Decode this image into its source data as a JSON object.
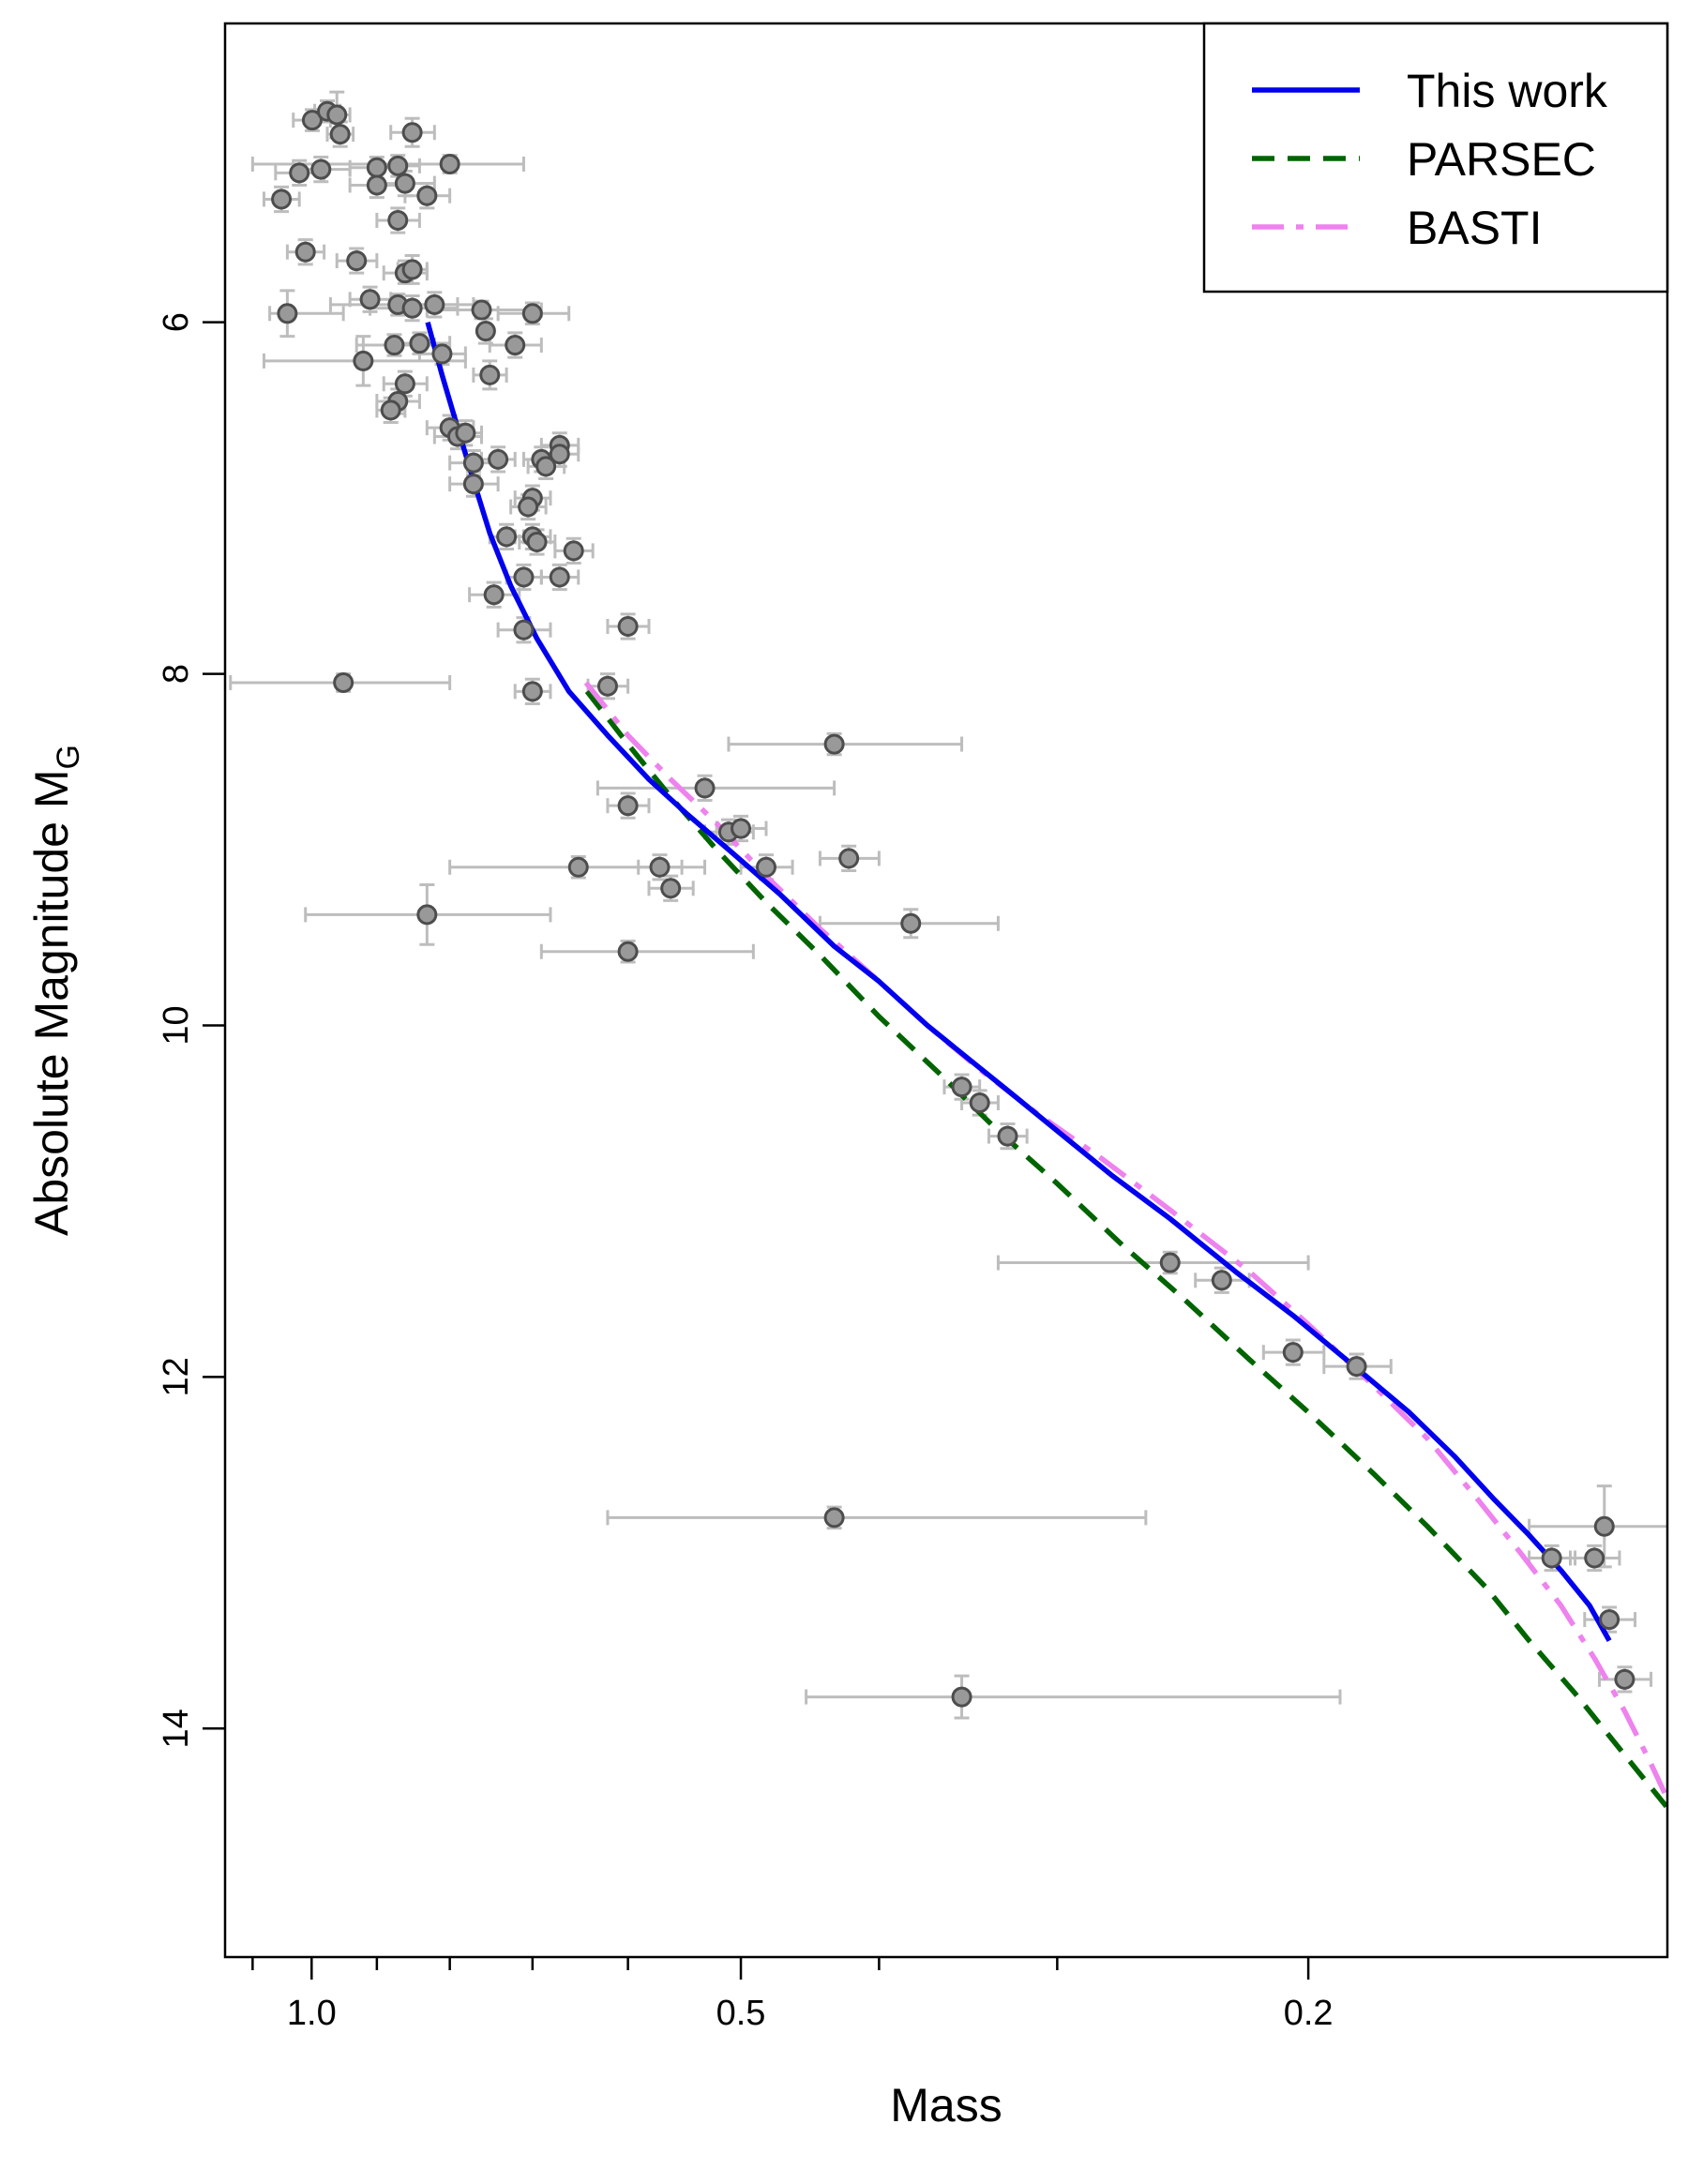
{
  "chart_data": {
    "type": "scatter",
    "title": "",
    "xlabel": "Mass",
    "ylabel_main": "Absolute Magnitude M",
    "ylabel_sub": "G",
    "x_scale": "log",
    "x_reversed": true,
    "xlim": [
      1.15,
      0.112
    ],
    "y_reversed": true,
    "ylim": [
      4.3,
      15.3
    ],
    "x_major_ticks": [
      1.0,
      0.5,
      0.2
    ],
    "x_major_tick_labels": [
      "1.0",
      "0.5",
      "0.2"
    ],
    "x_minor_ticks": [
      1.1,
      0.9,
      0.8,
      0.7,
      0.6,
      0.4,
      0.3,
      0.1
    ],
    "y_ticks": [
      6,
      8,
      10,
      12,
      14
    ],
    "y_tick_labels": [
      "6",
      "8",
      "10",
      "12",
      "14"
    ],
    "legend": {
      "position": "top-right",
      "entries": [
        {
          "label": "This work",
          "color": "#0000ee",
          "style": "solid"
        },
        {
          "label": "PARSEC",
          "color": "#006400",
          "style": "dashed"
        },
        {
          "label": "BASTI",
          "color": "#ee82ee",
          "style": "dashdot"
        }
      ]
    },
    "series": [
      {
        "name": "This work",
        "color": "#0000ee",
        "style": "solid",
        "points": [
          [
            0.829,
            6.0
          ],
          [
            0.81,
            6.3
          ],
          [
            0.79,
            6.6
          ],
          [
            0.77,
            6.9
          ],
          [
            0.75,
            7.2
          ],
          [
            0.725,
            7.5
          ],
          [
            0.695,
            7.8
          ],
          [
            0.66,
            8.1
          ],
          [
            0.62,
            8.35
          ],
          [
            0.58,
            8.6
          ],
          [
            0.545,
            8.8
          ],
          [
            0.51,
            9.0
          ],
          [
            0.47,
            9.25
          ],
          [
            0.43,
            9.55
          ],
          [
            0.4,
            9.75
          ],
          [
            0.37,
            10.0
          ],
          [
            0.345,
            10.2
          ],
          [
            0.325,
            10.37
          ],
          [
            0.3,
            10.6
          ],
          [
            0.275,
            10.85
          ],
          [
            0.25,
            11.1
          ],
          [
            0.225,
            11.4
          ],
          [
            0.205,
            11.65
          ],
          [
            0.185,
            11.95
          ],
          [
            0.17,
            12.2
          ],
          [
            0.158,
            12.45
          ],
          [
            0.148,
            12.7
          ],
          [
            0.14,
            12.9
          ],
          [
            0.133,
            13.1
          ],
          [
            0.127,
            13.3
          ],
          [
            0.123,
            13.5
          ]
        ]
      },
      {
        "name": "PARSEC",
        "color": "#006400",
        "style": "dashed",
        "points": [
          [
            0.641,
            8.1
          ],
          [
            0.6,
            8.4
          ],
          [
            0.56,
            8.7
          ],
          [
            0.52,
            9.0
          ],
          [
            0.48,
            9.3
          ],
          [
            0.44,
            9.6
          ],
          [
            0.4,
            9.95
          ],
          [
            0.36,
            10.3
          ],
          [
            0.33,
            10.6
          ],
          [
            0.3,
            10.9
          ],
          [
            0.27,
            11.25
          ],
          [
            0.245,
            11.55
          ],
          [
            0.22,
            11.9
          ],
          [
            0.2,
            12.2
          ],
          [
            0.18,
            12.55
          ],
          [
            0.165,
            12.85
          ],
          [
            0.15,
            13.2
          ],
          [
            0.14,
            13.5
          ],
          [
            0.13,
            13.8
          ],
          [
            0.12,
            14.15
          ],
          [
            0.112,
            14.45
          ]
        ]
      },
      {
        "name": "BASTI",
        "color": "#ee82ee",
        "style": "dashdot",
        "points": [
          [
            0.642,
            8.05
          ],
          [
            0.6,
            8.35
          ],
          [
            0.56,
            8.6
          ],
          [
            0.52,
            8.85
          ],
          [
            0.48,
            9.15
          ],
          [
            0.44,
            9.45
          ],
          [
            0.4,
            9.75
          ],
          [
            0.37,
            10.0
          ],
          [
            0.34,
            10.25
          ],
          [
            0.31,
            10.5
          ],
          [
            0.28,
            10.75
          ],
          [
            0.25,
            11.05
          ],
          [
            0.22,
            11.4
          ],
          [
            0.2,
            11.7
          ],
          [
            0.18,
            12.05
          ],
          [
            0.165,
            12.35
          ],
          [
            0.152,
            12.7
          ],
          [
            0.142,
            13.0
          ],
          [
            0.133,
            13.3
          ],
          [
            0.126,
            13.6
          ],
          [
            0.12,
            13.9
          ],
          [
            0.115,
            14.2
          ],
          [
            0.112,
            14.4
          ]
        ]
      }
    ],
    "points": [
      [
        0.999,
        4.85,
        0.97,
        1.03,
        4.79,
        4.91
      ],
      [
        0.975,
        4.8,
        0.955,
        0.995,
        4.74,
        4.86
      ],
      [
        0.96,
        4.82,
        0.94,
        0.98,
        4.69,
        4.95
      ],
      [
        0.955,
        4.93,
        0.935,
        0.975,
        4.86,
        5.0
      ],
      [
        0.85,
        4.92,
        0.82,
        0.88,
        4.84,
        5.0
      ],
      [
        0.8,
        5.1,
        1.1,
        0.71,
        5.05,
        5.15
      ],
      [
        0.9,
        5.12,
        0.86,
        0.94,
        5.06,
        5.18
      ],
      [
        0.87,
        5.11,
        0.84,
        0.9,
        5.05,
        5.17
      ],
      [
        0.985,
        5.13,
        0.94,
        1.03,
        5.06,
        5.2
      ],
      [
        1.02,
        5.15,
        1.06,
        0.98,
        5.08,
        5.22
      ],
      [
        1.05,
        5.3,
        1.08,
        1.02,
        5.23,
        5.37
      ],
      [
        0.9,
        5.22,
        0.86,
        0.94,
        5.15,
        5.29
      ],
      [
        0.86,
        5.21,
        0.82,
        0.9,
        5.14,
        5.28
      ],
      [
        0.83,
        5.28,
        0.8,
        0.86,
        5.21,
        5.35
      ],
      [
        0.87,
        5.42,
        0.84,
        0.9,
        5.35,
        5.49
      ],
      [
        1.01,
        5.6,
        1.04,
        0.98,
        5.53,
        5.67
      ],
      [
        0.93,
        5.65,
        0.9,
        0.96,
        5.58,
        5.72
      ],
      [
        0.86,
        5.72,
        0.83,
        0.89,
        5.65,
        5.78
      ],
      [
        0.85,
        5.7,
        0.83,
        0.87,
        5.62,
        5.78
      ],
      [
        0.91,
        5.87,
        0.88,
        0.94,
        5.8,
        5.94
      ],
      [
        0.87,
        5.9,
        0.77,
        0.97,
        5.84,
        5.96
      ],
      [
        0.85,
        5.92,
        0.79,
        0.91,
        5.85,
        5.99
      ],
      [
        0.82,
        5.9,
        0.79,
        0.85,
        5.83,
        5.97
      ],
      [
        0.76,
        5.93,
        0.69,
        0.83,
        5.88,
        5.98
      ],
      [
        0.7,
        5.95,
        0.66,
        0.74,
        5.89,
        6.01
      ],
      [
        1.04,
        5.95,
        1.07,
        0.95,
        5.82,
        6.08
      ],
      [
        0.755,
        6.05,
        0.75,
        0.76,
        5.98,
        6.12
      ],
      [
        0.84,
        6.12,
        0.8,
        0.88,
        6.06,
        6.18
      ],
      [
        0.875,
        6.13,
        0.82,
        0.93,
        6.07,
        6.19
      ],
      [
        0.81,
        6.18,
        0.78,
        0.84,
        6.12,
        6.24
      ],
      [
        0.72,
        6.13,
        0.69,
        0.75,
        6.06,
        6.2
      ],
      [
        0.92,
        6.22,
        1.08,
        0.78,
        6.08,
        6.36
      ],
      [
        0.75,
        6.3,
        0.73,
        0.77,
        6.22,
        6.38
      ],
      [
        0.86,
        6.35,
        0.83,
        0.89,
        6.28,
        6.42
      ],
      [
        0.87,
        6.45,
        0.84,
        0.9,
        6.38,
        6.52
      ],
      [
        0.88,
        6.5,
        0.86,
        0.9,
        6.43,
        6.57
      ],
      [
        0.8,
        6.6,
        0.77,
        0.83,
        6.53,
        6.67
      ],
      [
        0.79,
        6.65,
        0.76,
        0.82,
        6.58,
        6.72
      ],
      [
        0.78,
        6.63,
        0.76,
        0.8,
        6.56,
        6.7
      ],
      [
        0.67,
        6.7,
        0.65,
        0.69,
        6.63,
        6.77
      ],
      [
        0.67,
        6.75,
        0.65,
        0.69,
        6.68,
        6.82
      ],
      [
        0.69,
        6.78,
        0.67,
        0.71,
        6.71,
        6.85
      ],
      [
        0.74,
        6.78,
        0.72,
        0.76,
        6.71,
        6.85
      ],
      [
        0.685,
        6.82,
        0.665,
        0.705,
        6.75,
        6.89
      ],
      [
        0.77,
        6.8,
        0.74,
        0.8,
        6.73,
        6.87
      ],
      [
        0.77,
        6.92,
        0.74,
        0.8,
        6.85,
        6.99
      ],
      [
        0.7,
        7.0,
        0.68,
        0.72,
        6.93,
        7.07
      ],
      [
        0.705,
        7.05,
        0.685,
        0.725,
        6.98,
        7.12
      ],
      [
        0.73,
        7.22,
        0.71,
        0.75,
        7.15,
        7.29
      ],
      [
        0.7,
        7.22,
        0.68,
        0.72,
        7.15,
        7.29
      ],
      [
        0.695,
        7.25,
        0.675,
        0.715,
        7.18,
        7.32
      ],
      [
        0.655,
        7.3,
        0.635,
        0.675,
        7.23,
        7.37
      ],
      [
        0.71,
        7.45,
        0.69,
        0.73,
        7.38,
        7.52
      ],
      [
        0.67,
        7.45,
        0.65,
        0.69,
        7.38,
        7.52
      ],
      [
        0.745,
        7.55,
        0.715,
        0.775,
        7.48,
        7.62
      ],
      [
        0.71,
        7.75,
        0.68,
        0.74,
        7.68,
        7.82
      ],
      [
        0.6,
        7.73,
        0.58,
        0.62,
        7.66,
        7.8
      ],
      [
        0.95,
        8.05,
        1.14,
        0.8,
        8.0,
        8.1
      ],
      [
        0.7,
        8.1,
        0.68,
        0.72,
        8.03,
        8.17
      ],
      [
        0.62,
        8.07,
        0.6,
        0.64,
        8.0,
        8.14
      ],
      [
        0.43,
        8.4,
        0.51,
        0.35,
        8.34,
        8.46
      ],
      [
        0.53,
        8.65,
        0.63,
        0.43,
        8.58,
        8.72
      ],
      [
        0.6,
        8.75,
        0.58,
        0.62,
        8.68,
        8.82
      ],
      [
        0.51,
        8.9,
        0.49,
        0.53,
        8.83,
        8.97
      ],
      [
        0.5,
        8.88,
        0.48,
        0.52,
        8.81,
        8.95
      ],
      [
        0.57,
        9.1,
        0.55,
        0.59,
        9.03,
        9.17
      ],
      [
        0.48,
        9.1,
        0.46,
        0.5,
        9.03,
        9.17
      ],
      [
        0.42,
        9.05,
        0.4,
        0.44,
        8.98,
        9.12
      ],
      [
        0.65,
        9.1,
        0.8,
        0.53,
        9.04,
        9.16
      ],
      [
        0.83,
        9.37,
        1.01,
        0.68,
        9.2,
        9.54
      ],
      [
        0.56,
        9.22,
        0.54,
        0.58,
        9.15,
        9.29
      ],
      [
        0.6,
        9.58,
        0.69,
        0.49,
        9.52,
        9.64
      ],
      [
        0.38,
        9.42,
        0.44,
        0.33,
        9.34,
        9.5
      ],
      [
        0.35,
        10.35,
        0.34,
        0.36,
        10.28,
        10.42
      ],
      [
        0.34,
        10.44,
        0.33,
        0.35,
        10.37,
        10.51
      ],
      [
        0.325,
        10.63,
        0.315,
        0.335,
        10.56,
        10.7
      ],
      [
        0.25,
        11.35,
        0.33,
        0.2,
        11.29,
        11.41
      ],
      [
        0.23,
        11.45,
        0.22,
        0.24,
        11.38,
        11.52
      ],
      [
        0.205,
        11.86,
        0.195,
        0.215,
        11.79,
        11.93
      ],
      [
        0.185,
        11.94,
        0.175,
        0.195,
        11.87,
        12.01
      ],
      [
        0.43,
        12.8,
        0.62,
        0.26,
        12.74,
        12.86
      ],
      [
        0.135,
        13.03,
        0.13,
        0.14,
        12.96,
        13.1
      ],
      [
        0.124,
        12.85,
        0.14,
        0.111,
        12.62,
        13.08
      ],
      [
        0.126,
        13.03,
        0.121,
        0.131,
        12.96,
        13.1
      ],
      [
        0.123,
        13.38,
        0.118,
        0.128,
        13.31,
        13.45
      ],
      [
        0.12,
        13.72,
        0.115,
        0.125,
        13.65,
        13.79
      ],
      [
        0.35,
        13.82,
        0.45,
        0.19,
        13.7,
        13.94
      ]
    ]
  }
}
